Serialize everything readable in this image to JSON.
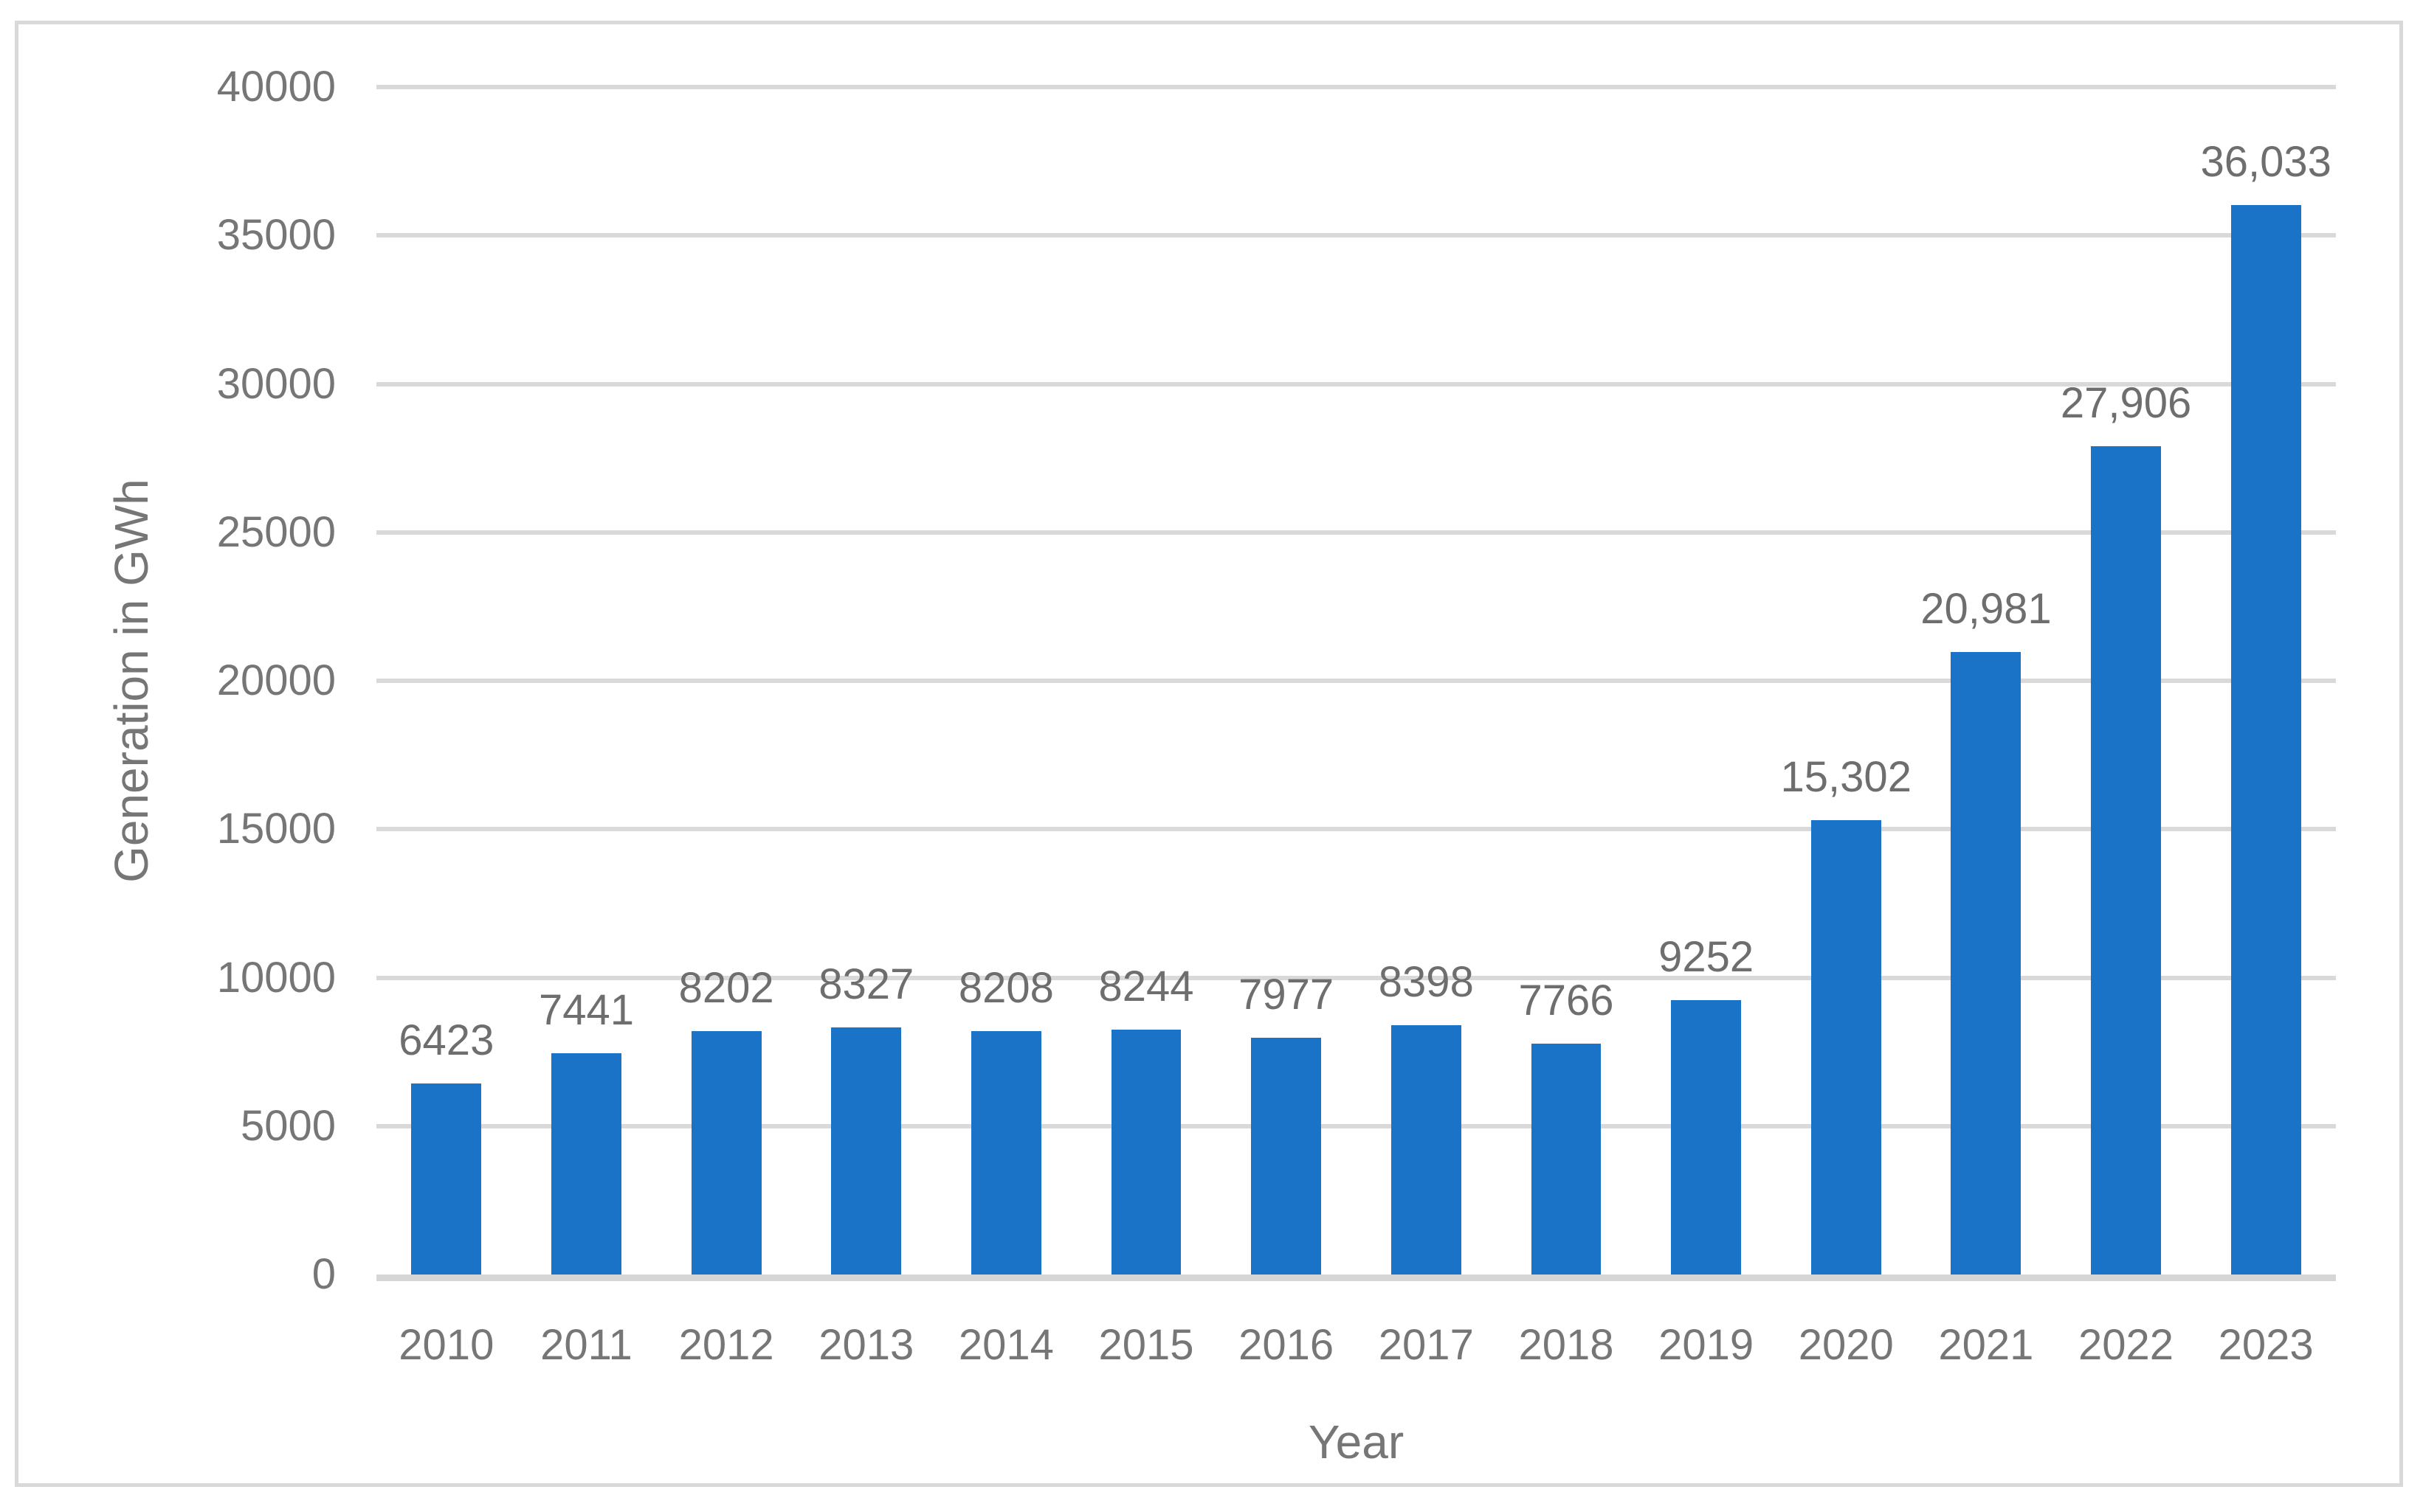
{
  "chart_data": {
    "type": "bar",
    "title": "",
    "xlabel": "Year",
    "ylabel": "Generation in GWh",
    "categories": [
      "2010",
      "2011",
      "2012",
      "2013",
      "2014",
      "2015",
      "2016",
      "2017",
      "2018",
      "2019",
      "2020",
      "2021",
      "2022",
      "2023"
    ],
    "values": [
      6423,
      7441,
      8202,
      8327,
      8208,
      8244,
      7977,
      8398,
      7766,
      9252,
      15302,
      20981,
      27906,
      36033
    ],
    "value_labels": [
      "6423",
      "7441",
      "8202",
      "8327",
      "8208",
      "8244",
      "7977",
      "8398",
      "7766",
      "9252",
      "15,302",
      "20,981",
      "27,906",
      "36,033"
    ],
    "ylim": [
      0,
      40000
    ],
    "ytick_step": 5000,
    "ytick_labels": [
      "0",
      "5000",
      "10000",
      "15000",
      "20000",
      "25000",
      "30000",
      "35000",
      "40000"
    ],
    "grid": true,
    "legend": "none",
    "colors": {
      "bar": "#1B73C8",
      "gridline": "#D9D9D9",
      "axis_line": "#D6D6D6",
      "text": "#767676",
      "data_label_text": "#6E6E6E",
      "frame_border": "#D9D9D9",
      "background": "#FFFFFF"
    }
  }
}
